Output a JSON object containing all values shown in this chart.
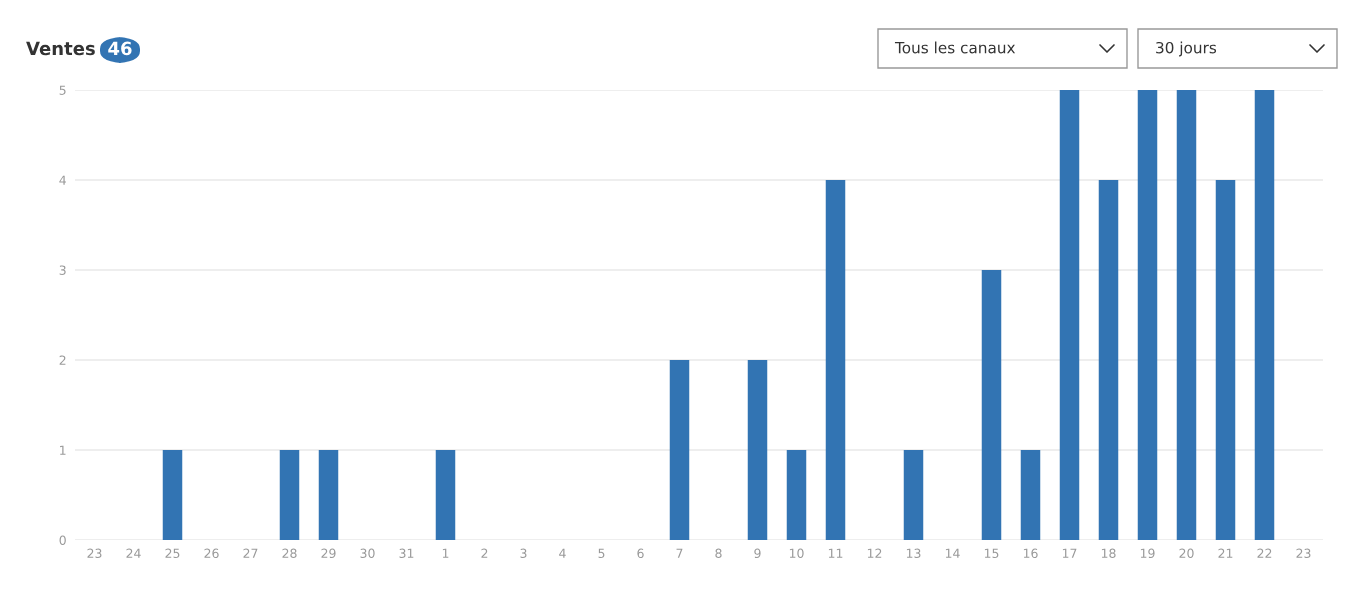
{
  "chart_data": {
    "type": "bar",
    "title": "Ventes",
    "categories": [
      "23",
      "24",
      "25",
      "26",
      "27",
      "28",
      "29",
      "30",
      "31",
      "1",
      "2",
      "3",
      "4",
      "5",
      "6",
      "7",
      "8",
      "9",
      "10",
      "11",
      "12",
      "13",
      "14",
      "15",
      "16",
      "17",
      "18",
      "19",
      "20",
      "21",
      "22",
      "23"
    ],
    "values": [
      0,
      0,
      1,
      0,
      0,
      1,
      1,
      0,
      0,
      1,
      0,
      0,
      0,
      0,
      0,
      2,
      0,
      2,
      1,
      4,
      0,
      1,
      0,
      3,
      1,
      5,
      4,
      5,
      5,
      4,
      5,
      0
    ],
    "color": "#3274b3",
    "ylim": [
      0,
      5
    ],
    "yticks": [
      0,
      1,
      2,
      3,
      4,
      5
    ],
    "grid": "y",
    "annotations": [
      "46",
      "Tous les canaux",
      "30 jours"
    ]
  }
}
